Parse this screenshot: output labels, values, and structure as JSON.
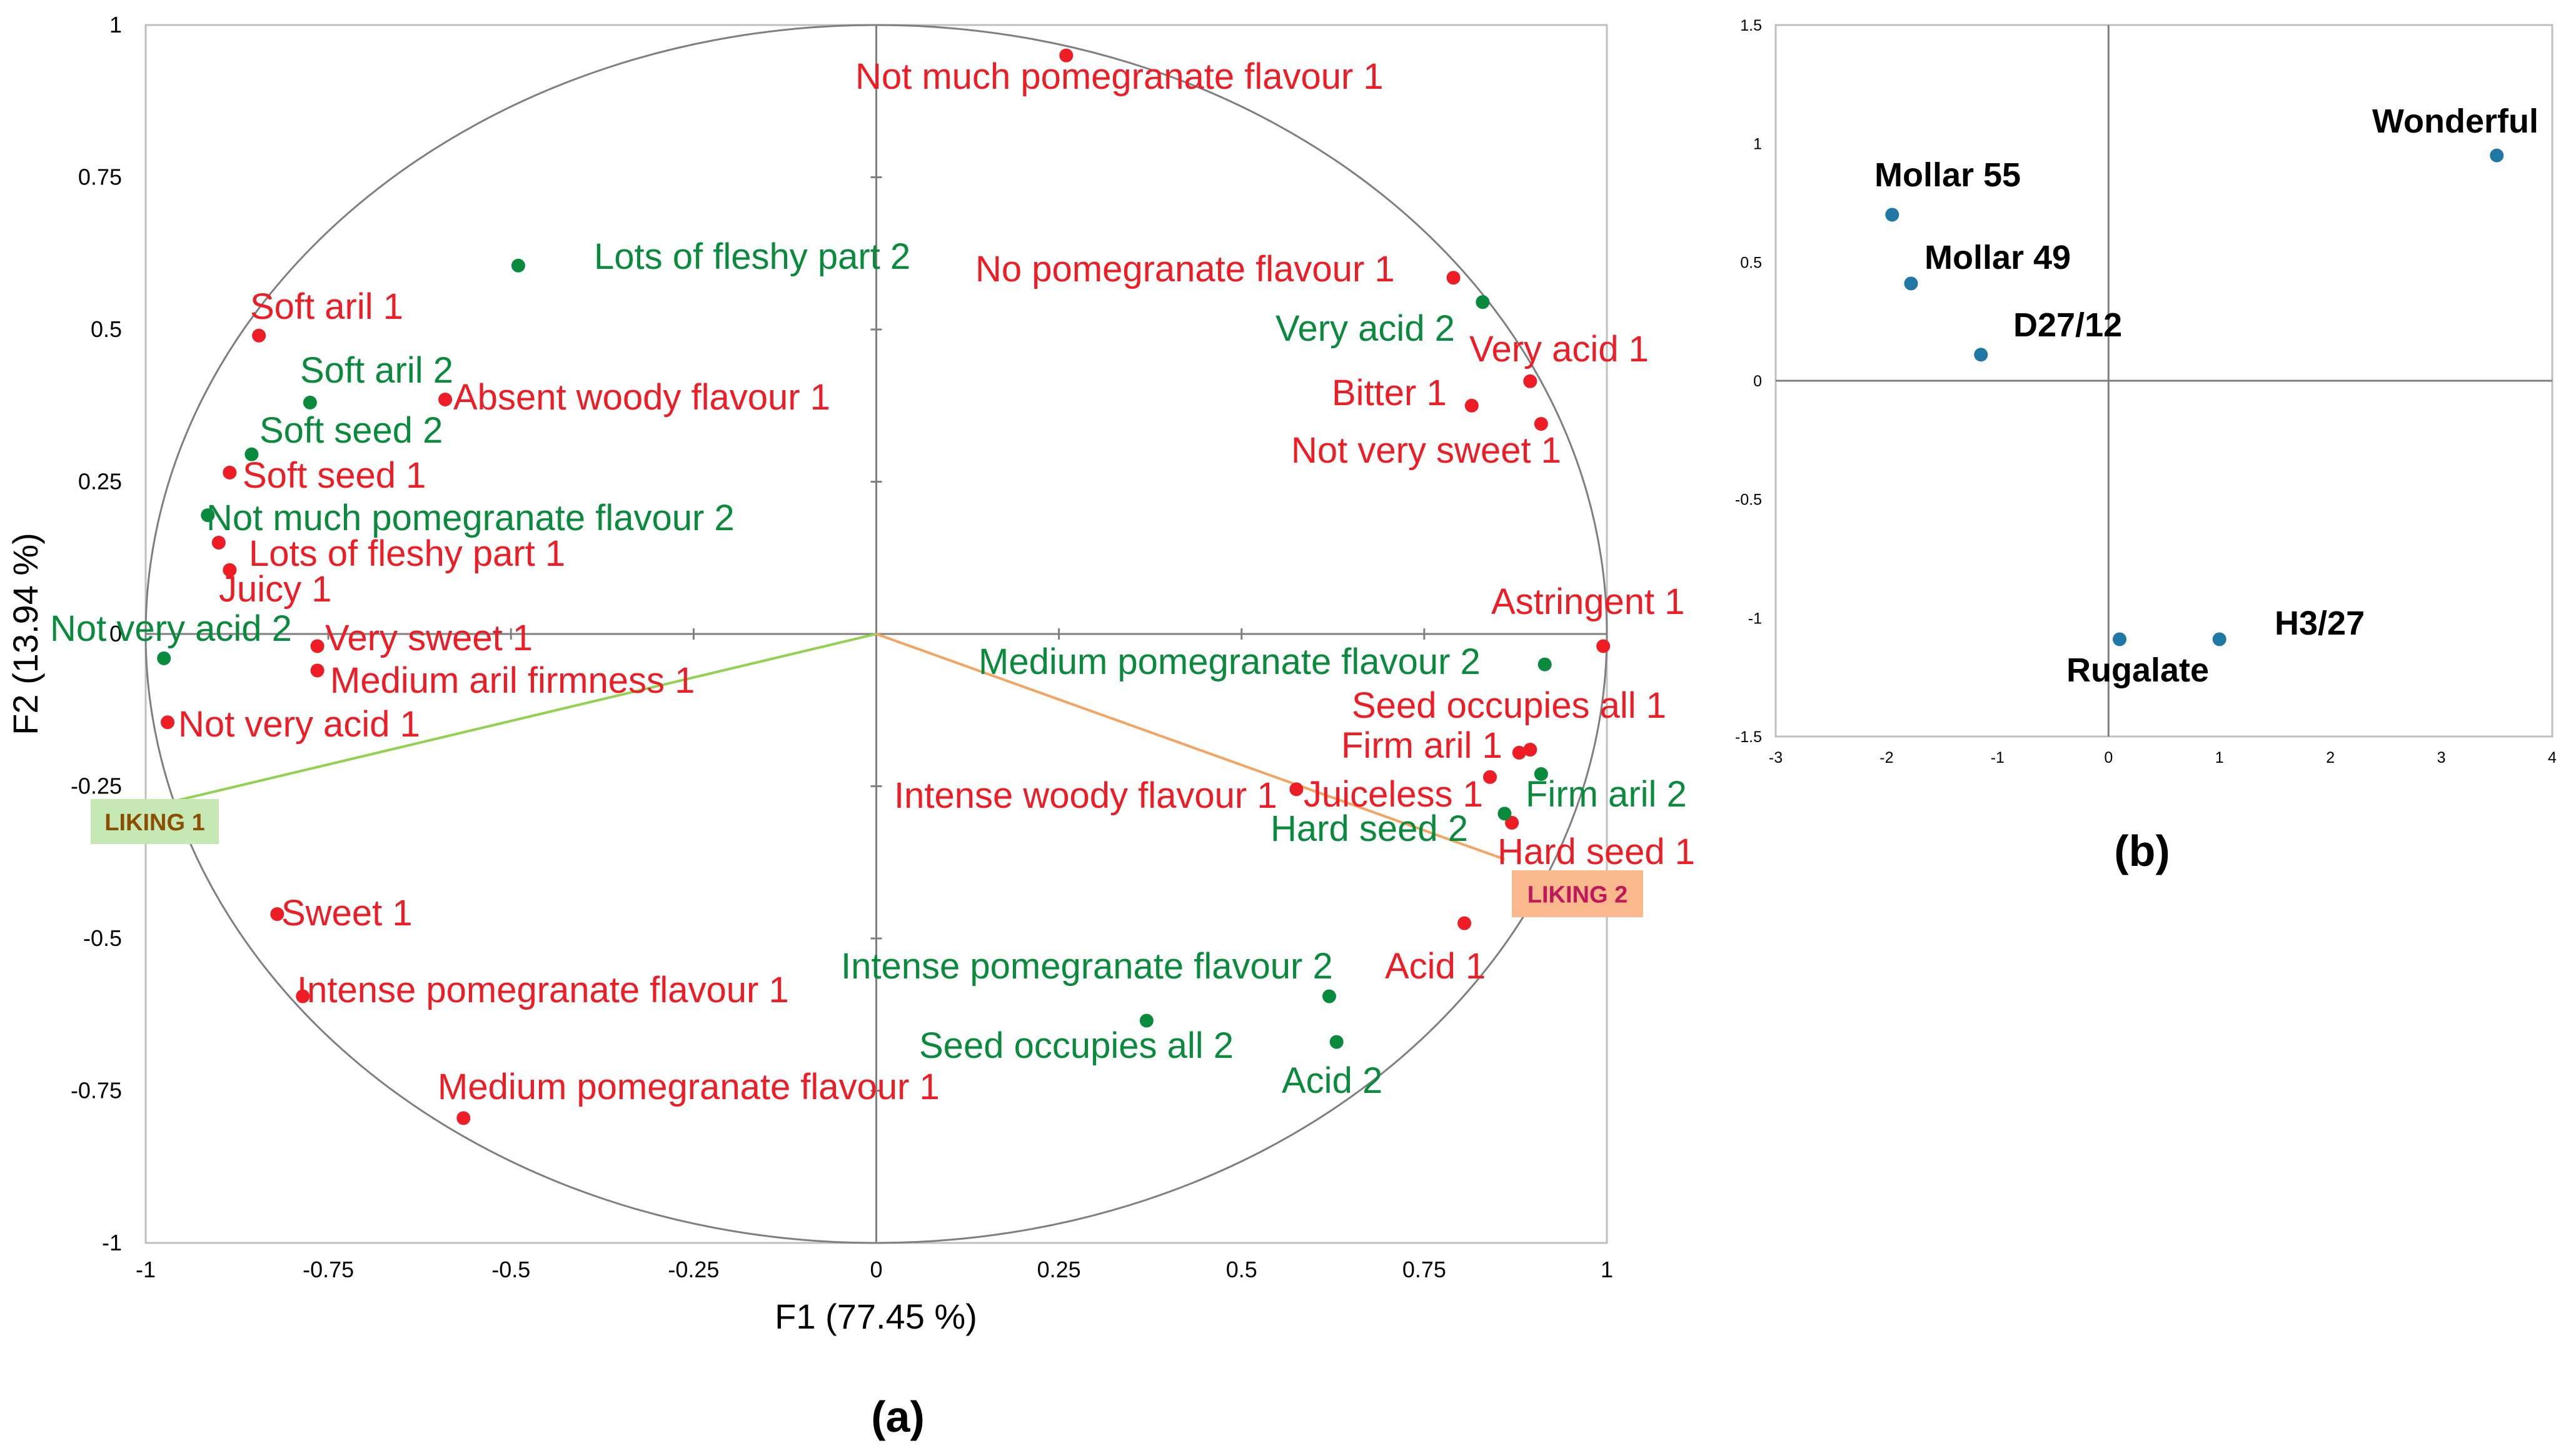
{
  "chart_data": [
    {
      "type": "scatter",
      "panel_label": "(a)",
      "xlabel": "F1 (77.45 %)",
      "ylabel": "F2 (13.94 %)",
      "xlim": [
        -1,
        1
      ],
      "ylim": [
        -1,
        1
      ],
      "x_ticks": [
        "-1",
        "-0.75",
        "-0.5",
        "-0.25",
        "0",
        "0.25",
        "0.5",
        "0.75",
        "1"
      ],
      "y_ticks": [
        "1",
        "0.75",
        "0.5",
        "0.25",
        "0",
        "-0.25",
        "-0.5",
        "-0.75",
        "-1"
      ],
      "correlation_circle": true,
      "series": [
        {
          "color": "#ee1c24",
          "points": [
            {
              "label": "Not much pomegranate flavour 1",
              "x": 0.26,
              "y": 0.95
            },
            {
              "label": "No pomegranate flavour 1",
              "x": 0.79,
              "y": 0.585
            },
            {
              "label": "Very acid 1",
              "x": 0.895,
              "y": 0.415
            },
            {
              "label": "Bitter 1",
              "x": 0.815,
              "y": 0.375
            },
            {
              "label": "Not very sweet 1",
              "x": 0.91,
              "y": 0.345
            },
            {
              "label": "Soft aril 1",
              "x": -0.845,
              "y": 0.49
            },
            {
              "label": "Absent woody flavour 1",
              "x": -0.59,
              "y": 0.385
            },
            {
              "label": "Soft seed 1",
              "x": -0.885,
              "y": 0.265
            },
            {
              "label": "Lots of fleshy part 1",
              "x": -0.9,
              "y": 0.15
            },
            {
              "label": "Juicy 1",
              "x": -0.885,
              "y": 0.105
            },
            {
              "label": "Very sweet 1",
              "x": -0.765,
              "y": -0.02
            },
            {
              "label": "Medium aril firmness 1",
              "x": -0.765,
              "y": -0.06
            },
            {
              "label": "Not very acid 1",
              "x": -0.97,
              "y": -0.145
            },
            {
              "label": "Astringent 1",
              "x": 0.995,
              "y": -0.02
            },
            {
              "label": "Seed occupies all 1",
              "x": 0.895,
              "y": -0.19
            },
            {
              "label": "Firm aril 1",
              "x": 0.88,
              "y": -0.195
            },
            {
              "label": "Juiceless 1",
              "x": 0.84,
              "y": -0.235
            },
            {
              "label": "Intense woody flavour 1",
              "x": 0.575,
              "y": -0.255
            },
            {
              "label": "Hard seed 1",
              "x": 0.87,
              "y": -0.31
            },
            {
              "label": "Acid 1",
              "x": 0.805,
              "y": -0.475
            },
            {
              "label": "Sweet 1",
              "x": -0.82,
              "y": -0.46
            },
            {
              "label": "Intense pomegranate flavour 1",
              "x": -0.785,
              "y": -0.595
            },
            {
              "label": "Medium pomegranate flavour 1",
              "x": -0.565,
              "y": -0.795
            }
          ]
        },
        {
          "color": "#0a8a3c",
          "points": [
            {
              "label": "Lots of fleshy part 2",
              "x": -0.49,
              "y": 0.605
            },
            {
              "label": "Very acid 2",
              "x": 0.83,
              "y": 0.545
            },
            {
              "label": "Soft aril 2",
              "x": -0.775,
              "y": 0.38
            },
            {
              "label": "Soft seed 2",
              "x": -0.855,
              "y": 0.295
            },
            {
              "label": "Not much pomegranate flavour 2",
              "x": -0.915,
              "y": 0.195
            },
            {
              "label": "Not very acid 2",
              "x": -0.975,
              "y": -0.04
            },
            {
              "label": "Medium pomegranate flavour 2",
              "x": 0.915,
              "y": -0.05
            },
            {
              "label": "Firm aril 2",
              "x": 0.91,
              "y": -0.23
            },
            {
              "label": "Hard seed 2",
              "x": 0.86,
              "y": -0.295
            },
            {
              "label": "Intense pomegranate flavour 2",
              "x": 0.62,
              "y": -0.595
            },
            {
              "label": "Seed occupies all 2",
              "x": 0.37,
              "y": -0.635
            },
            {
              "label": "Acid 2",
              "x": 0.63,
              "y": -0.67
            }
          ]
        }
      ],
      "liking_vectors": [
        {
          "label": "LIKING 1",
          "x": -0.98,
          "y": -0.28,
          "line_color": "#92d050",
          "box_color": "#c6e8b4",
          "text_color": "#8a4f00"
        },
        {
          "label": "LIKING 2",
          "x": 0.86,
          "y": -0.37,
          "line_color": "#f4a460",
          "box_color": "#f9b98c",
          "text_color": "#c0185a"
        }
      ]
    },
    {
      "type": "scatter",
      "panel_label": "(b)",
      "xlim": [
        -3,
        4
      ],
      "ylim": [
        -1.5,
        1.5
      ],
      "x_ticks": [
        "-3",
        "-2",
        "-1",
        "0",
        "1",
        "2",
        "3",
        "4"
      ],
      "y_ticks": [
        "1.5",
        "1",
        "0.5",
        "0",
        "-0.5",
        "-1",
        "-1.5"
      ],
      "point_color": "#1f77a4",
      "points": [
        {
          "label": "Wonderful",
          "x": 3.5,
          "y": 0.95
        },
        {
          "label": "Mollar 55",
          "x": -1.95,
          "y": 0.7
        },
        {
          "label": "Mollar 49",
          "x": -1.78,
          "y": 0.41
        },
        {
          "label": "D27/12",
          "x": -1.15,
          "y": 0.11
        },
        {
          "label": "H3/27",
          "x": 1.0,
          "y": -1.09
        },
        {
          "label": "Rugalate",
          "x": 0.1,
          "y": -1.09
        }
      ]
    }
  ]
}
